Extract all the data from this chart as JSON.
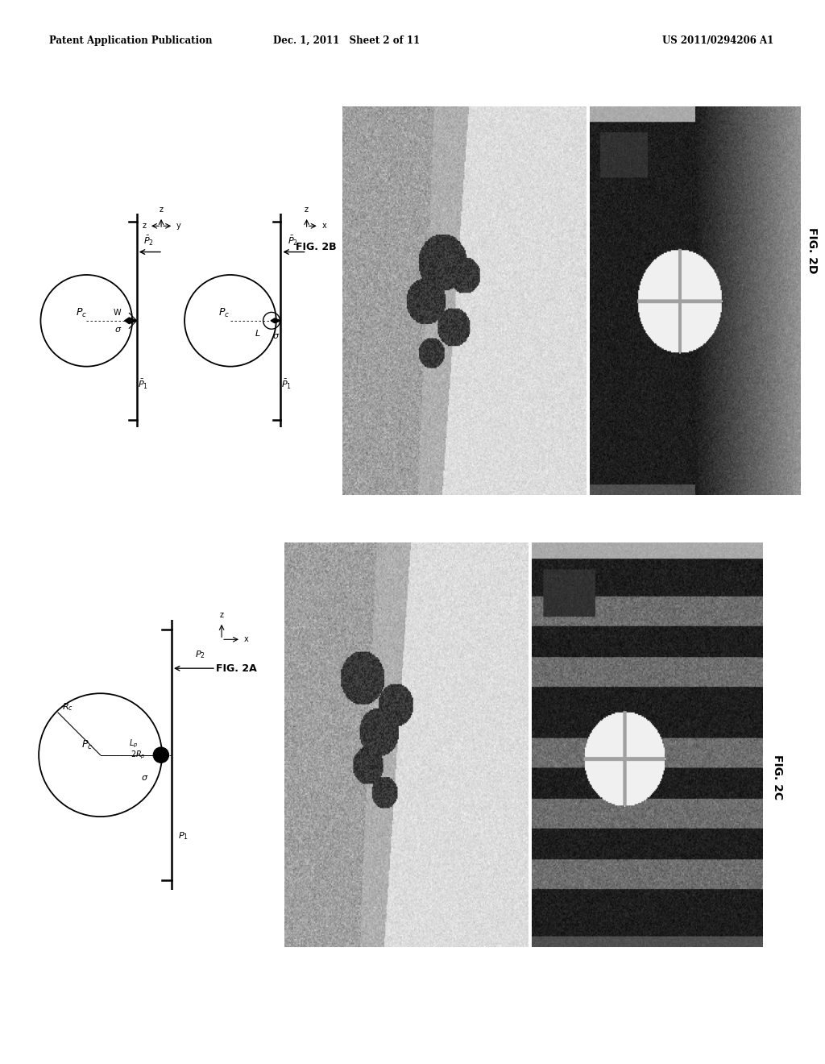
{
  "header_left": "Patent Application Publication",
  "header_mid": "Dec. 1, 2011   Sheet 2 of 11",
  "header_right": "US 2011/0294206 A1",
  "fig2a_label": "FIG. 2A",
  "fig2b_label": "FIG. 2B",
  "fig2c_label": "FIG. 2C",
  "fig2d_label": "FIG. 2D",
  "bg_color": "#ffffff"
}
